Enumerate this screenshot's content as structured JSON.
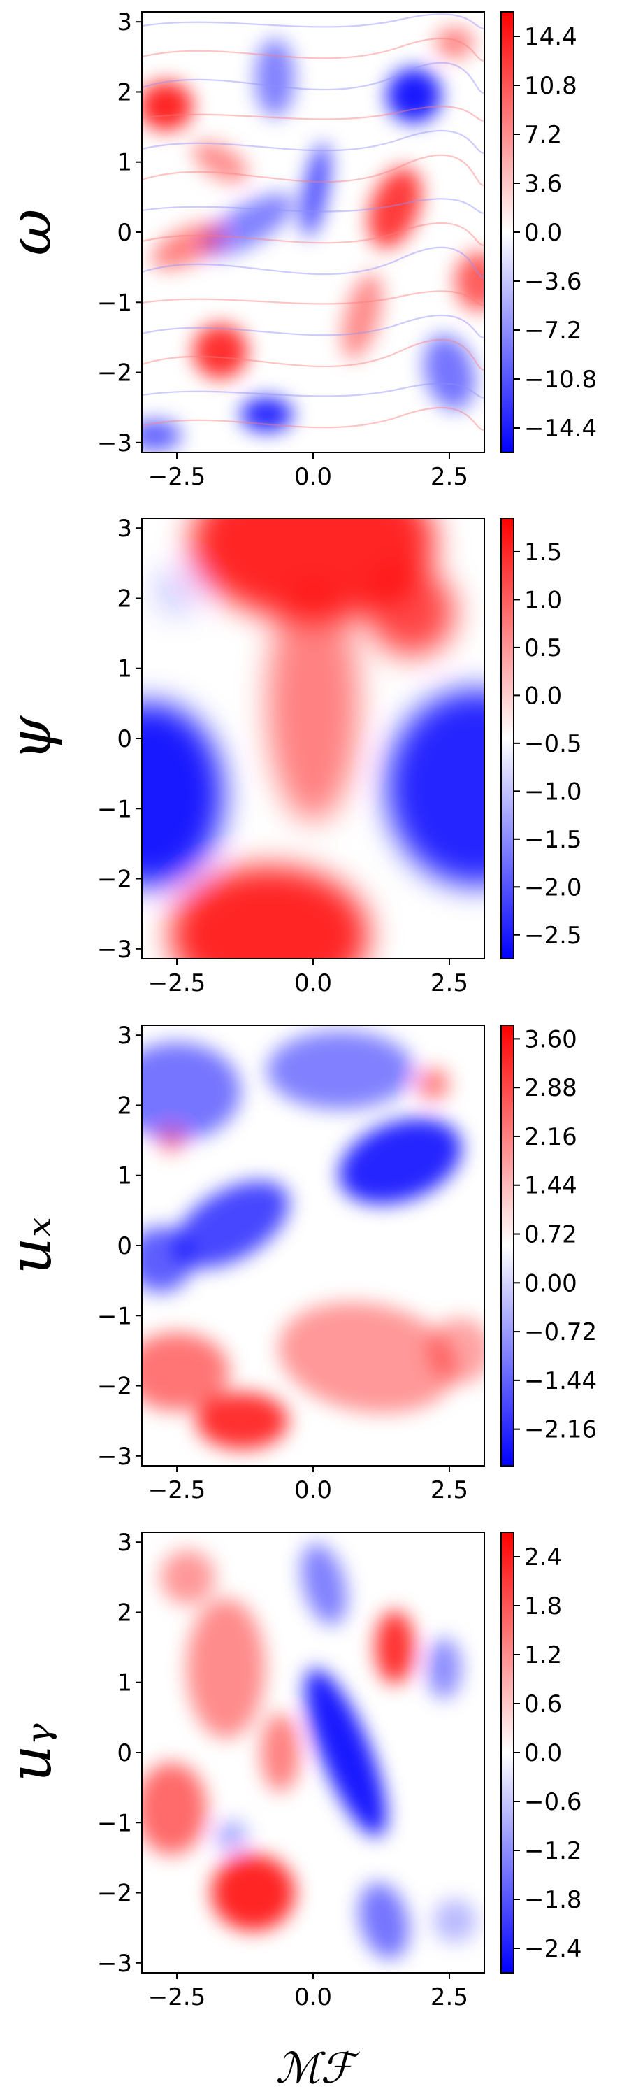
{
  "chart_data": [
    {
      "type": "heatmap",
      "ylabel": "ω",
      "xlim": [
        -3.1416,
        3.1416
      ],
      "ylim": [
        -3.1416,
        3.1416
      ],
      "xticks": [
        "−2.5",
        "0.0",
        "2.5"
      ],
      "xtick_values": [
        -2.5,
        0.0,
        2.5
      ],
      "yticks": [
        "−3",
        "−2",
        "−1",
        "0",
        "1",
        "2",
        "3"
      ],
      "ytick_values": [
        -3,
        -2,
        -1,
        0,
        1,
        2,
        3
      ],
      "colorbar_ticks": [
        "14.4",
        "10.8",
        "7.2",
        "3.6",
        "0.0",
        "−3.6",
        "−7.2",
        "−10.8",
        "−14.4"
      ],
      "colorbar_tick_values": [
        14.4,
        10.8,
        7.2,
        3.6,
        0.0,
        -3.6,
        -7.2,
        -10.8,
        -14.4
      ],
      "color_range": [
        -16.2,
        16.2
      ],
      "colormap": {
        "low": "#0000ff",
        "mid": "#ffffff",
        "high": "#ff0000"
      },
      "field": "vortical turbulence: compact red vortices near (-2.7,1.8), (1.5,0.3), (-1.7,-1.7), (3.0,-0.7); blue vortices near (1.8,1.9), (-0.8,-2.6), (0.0,0.5); fine filaments throughout"
    },
    {
      "type": "heatmap",
      "ylabel": "ψ",
      "xlim": [
        -3.1416,
        3.1416
      ],
      "ylim": [
        -3.1416,
        3.1416
      ],
      "xticks": [
        "−2.5",
        "0.0",
        "2.5"
      ],
      "xtick_values": [
        -2.5,
        0.0,
        2.5
      ],
      "yticks": [
        "−3",
        "−2",
        "−1",
        "0",
        "1",
        "2",
        "3"
      ],
      "ytick_values": [
        -3,
        -2,
        -1,
        0,
        1,
        2,
        3
      ],
      "colorbar_ticks": [
        "1.5",
        "1.0",
        "0.5",
        "0.0",
        "−0.5",
        "−1.0",
        "−1.5",
        "−2.0",
        "−2.5"
      ],
      "colorbar_tick_values": [
        1.5,
        1.0,
        0.5,
        0.0,
        -0.5,
        -1.0,
        -1.5,
        -2.0,
        -2.5
      ],
      "color_range": [
        -2.75,
        1.85
      ],
      "colormap": {
        "low": "#0000ff",
        "mid": "#ffffff",
        "high": "#ff0000"
      },
      "field": "smooth streamfunction: red column centered near x=0 with maxima at top (y≈3) and bottom (y≈-2.8); blue lobes on left (-3,-0.8) and right (3,-0.8); white patches near (-2.6,2.1)"
    },
    {
      "type": "heatmap",
      "ylabel": "u_x",
      "xlim": [
        -3.1416,
        3.1416
      ],
      "ylim": [
        -3.1416,
        3.1416
      ],
      "xticks": [
        "−2.5",
        "0.0",
        "2.5"
      ],
      "xtick_values": [
        -2.5,
        0.0,
        2.5
      ],
      "yticks": [
        "−3",
        "−2",
        "−1",
        "0",
        "1",
        "2",
        "3"
      ],
      "ytick_values": [
        -3,
        -2,
        -1,
        0,
        1,
        2,
        3
      ],
      "colorbar_ticks": [
        "3.60",
        "2.88",
        "2.16",
        "1.44",
        "0.72",
        "0.00",
        "−0.72",
        "−1.44",
        "−2.16"
      ],
      "colorbar_tick_values": [
        3.6,
        2.88,
        2.16,
        1.44,
        0.72,
        0.0,
        -0.72,
        -1.44,
        -2.16
      ],
      "color_range": [
        -2.7,
        3.8
      ],
      "colormap": {
        "low": "#0000ff",
        "mid": "#ffffff",
        "high": "#ff0000"
      },
      "field": "mostly blue in upper half (strongest near (1.6,1.2)), light red in lower half with strongest red near (-1.3,-2.5); white band diagonally across middle"
    },
    {
      "type": "heatmap",
      "ylabel": "u_y",
      "xlabel": "ℳℱ",
      "xlim": [
        -3.1416,
        3.1416
      ],
      "ylim": [
        -3.1416,
        3.1416
      ],
      "xticks": [
        "−2.5",
        "0.0",
        "2.5"
      ],
      "xtick_values": [
        -2.5,
        0.0,
        2.5
      ],
      "yticks": [
        "−3",
        "−2",
        "−1",
        "0",
        "1",
        "2",
        "3"
      ],
      "ytick_values": [
        -3,
        -2,
        -1,
        0,
        1,
        2,
        3
      ],
      "colorbar_ticks": [
        "2.4",
        "1.8",
        "1.2",
        "0.6",
        "0.0",
        "−0.6",
        "−1.2",
        "−1.8",
        "−2.4"
      ],
      "colorbar_tick_values": [
        2.4,
        1.8,
        1.2,
        0.6,
        0.0,
        -0.6,
        -1.2,
        -1.8,
        -2.4
      ],
      "color_range": [
        -2.7,
        2.7
      ],
      "colormap": {
        "low": "#0000ff",
        "mid": "#ffffff",
        "high": "#ff0000"
      },
      "field": "diagonal blue band from (0.2,2.5) to (1.5,-2.5) strongest near (0.6,0); red on left side (strongest near (-1.2,-2.0)) and red blob near (1.5,1.5)"
    }
  ]
}
